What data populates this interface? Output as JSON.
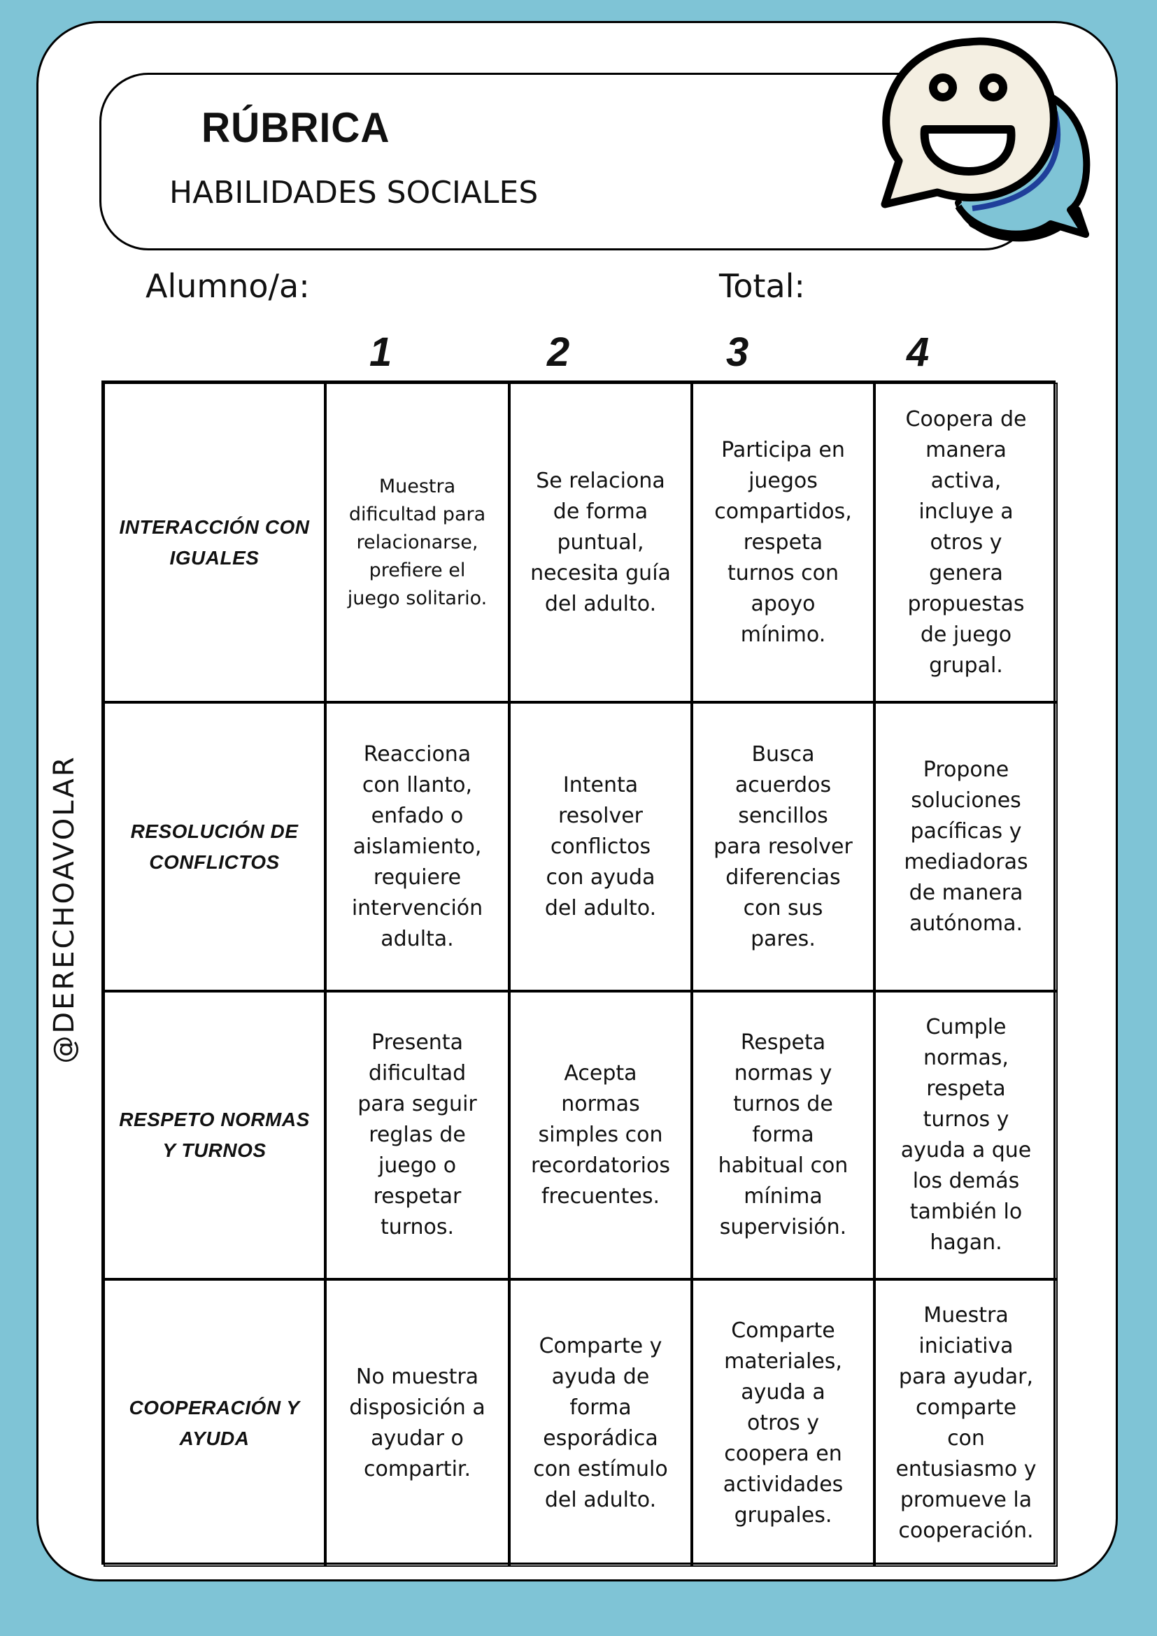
{
  "header": {
    "title": "RÚBRICA",
    "subtitle": "HABILIDADES SOCIALES",
    "icon": "smiley-speech-bubble-icon"
  },
  "fields": {
    "student_label": "Alumno/a:",
    "total_label": "Total:"
  },
  "watermark": "@DERECHOAVOLAR",
  "colors": {
    "background": "#7fc4d6",
    "bubble_face": "#f4efe2",
    "bubble_back": "#7fc4d6",
    "bubble_shadow": "#1f3f9a"
  },
  "levels": [
    "1",
    "2",
    "3",
    "4"
  ],
  "rows": [
    {
      "label": "INTERACCIÓN CON\nIGUALES",
      "cells": [
        "Muestra\ndificultad para\nrelacionarse,\nprefiere el\njuego solitario.",
        "Se relaciona\nde forma\npuntual,\nnecesita guía\ndel adulto.",
        "Participa en\njuegos\ncompartidos,\nrespeta\nturnos con\napoyo\nmínimo.",
        "Coopera de\nmanera\nactiva,\nincluye a\notros y\ngenera\npropuestas\nde juego\ngrupal."
      ]
    },
    {
      "label": "RESOLUCIÓN DE\nCONFLICTOS",
      "cells": [
        "Reacciona\ncon llanto,\nenfado o\naislamiento,\nrequiere\nintervención\nadulta.",
        "Intenta\nresolver\nconflictos\ncon ayuda\ndel adulto.",
        "Busca\nacuerdos\nsencillos\npara resolver\ndiferencias\ncon sus\npares.",
        "Propone\nsoluciones\npacíficas y\nmediadoras\nde manera\nautónoma."
      ]
    },
    {
      "label": "RESPETO NORMAS\nY TURNOS",
      "cells": [
        "Presenta\ndificultad\npara seguir\nreglas de\njuego o\nrespetar\nturnos.",
        "Acepta\nnormas\nsimples con\nrecordatorios\nfrecuentes.",
        "Respeta\nnormas y\nturnos de\nforma\nhabitual con\nmínima\nsupervisión.",
        "Cumple\nnormas,\nrespeta\nturnos y\nayuda a que\nlos demás\ntambién lo\nhagan."
      ]
    },
    {
      "label": "COOPERACIÓN Y\nAYUDA",
      "cells": [
        "No muestra\ndisposición a\nayudar o\ncompartir.",
        "Comparte y\nayuda de\nforma\nesporádica\ncon estímulo\ndel adulto.",
        "Comparte\nmateriales,\nayuda a\notros y\ncoopera en\nactividades\ngrupales.",
        "Muestra\niniciativa\npara ayudar,\ncomparte\ncon\nentusiasmo y\npromueve la\ncooperación."
      ]
    }
  ]
}
